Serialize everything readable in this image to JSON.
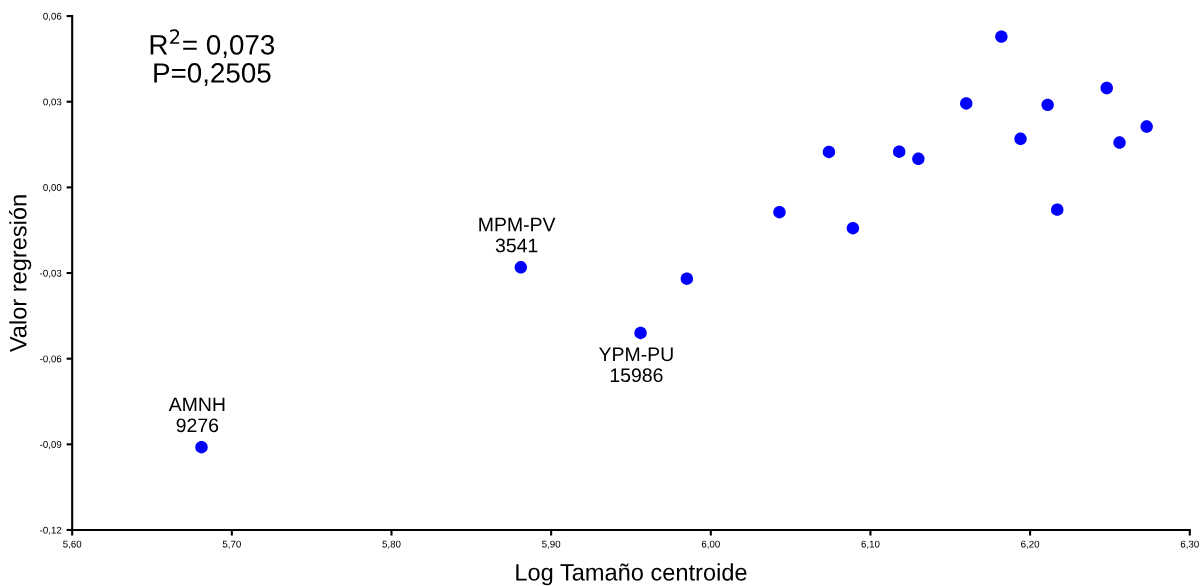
{
  "chart_data": {
    "type": "scatter",
    "xlabel": "Log Tamaño centroide",
    "ylabel": "Valor regresión",
    "x": [
      5.681,
      5.881,
      5.956,
      5.985,
      6.043,
      6.074,
      6.089,
      6.118,
      6.13,
      6.16,
      6.182,
      6.194,
      6.211,
      6.217,
      6.248,
      6.256,
      6.273
    ],
    "series": [
      {
        "color": "#0000ff",
        "values": [
          -0.091,
          -0.028,
          -0.051,
          -0.032,
          -0.0087,
          0.0124,
          -0.0143,
          0.0125,
          0.01,
          0.0294,
          0.0528,
          0.017,
          0.0289,
          -0.0078,
          0.0348,
          0.0157,
          0.0213
        ]
      }
    ],
    "marker": "circle",
    "grid": false,
    "xlim": [
      5.6,
      6.3
    ],
    "ylim": [
      -0.12,
      0.06
    ],
    "xticks": [
      {
        "value": 5.6,
        "label": "5,60"
      },
      {
        "value": 5.7,
        "label": "5,70"
      },
      {
        "value": 5.8,
        "label": "5,80"
      },
      {
        "value": 5.9,
        "label": "5,90"
      },
      {
        "value": 6.0,
        "label": "6,00"
      },
      {
        "value": 6.1,
        "label": "6,10"
      },
      {
        "value": 6.2,
        "label": "6,20"
      },
      {
        "value": 6.3,
        "label": "6,30"
      }
    ],
    "yticks": [
      {
        "value": -0.12,
        "label": "-0,12"
      },
      {
        "value": -0.09,
        "label": "-0,09"
      },
      {
        "value": -0.06,
        "label": "-0,06"
      },
      {
        "value": -0.03,
        "label": "-0,03"
      },
      {
        "value": 0.0,
        "label": "0,00"
      },
      {
        "value": 0.03,
        "label": "0,03"
      },
      {
        "value": 0.06,
        "label": "0,06"
      }
    ],
    "annotations": [
      "R$^{2}$= 0,073\nP=0,2505",
      {
        "text": "AMNH\n9276",
        "x": 5.681,
        "y": -0.091
      },
      {
        "text": "MPM-PV\n3541",
        "x": 5.881,
        "y": -0.028
      },
      {
        "text": "YPM-PU\n15986",
        "x": 5.956,
        "y": -0.051
      }
    ]
  }
}
